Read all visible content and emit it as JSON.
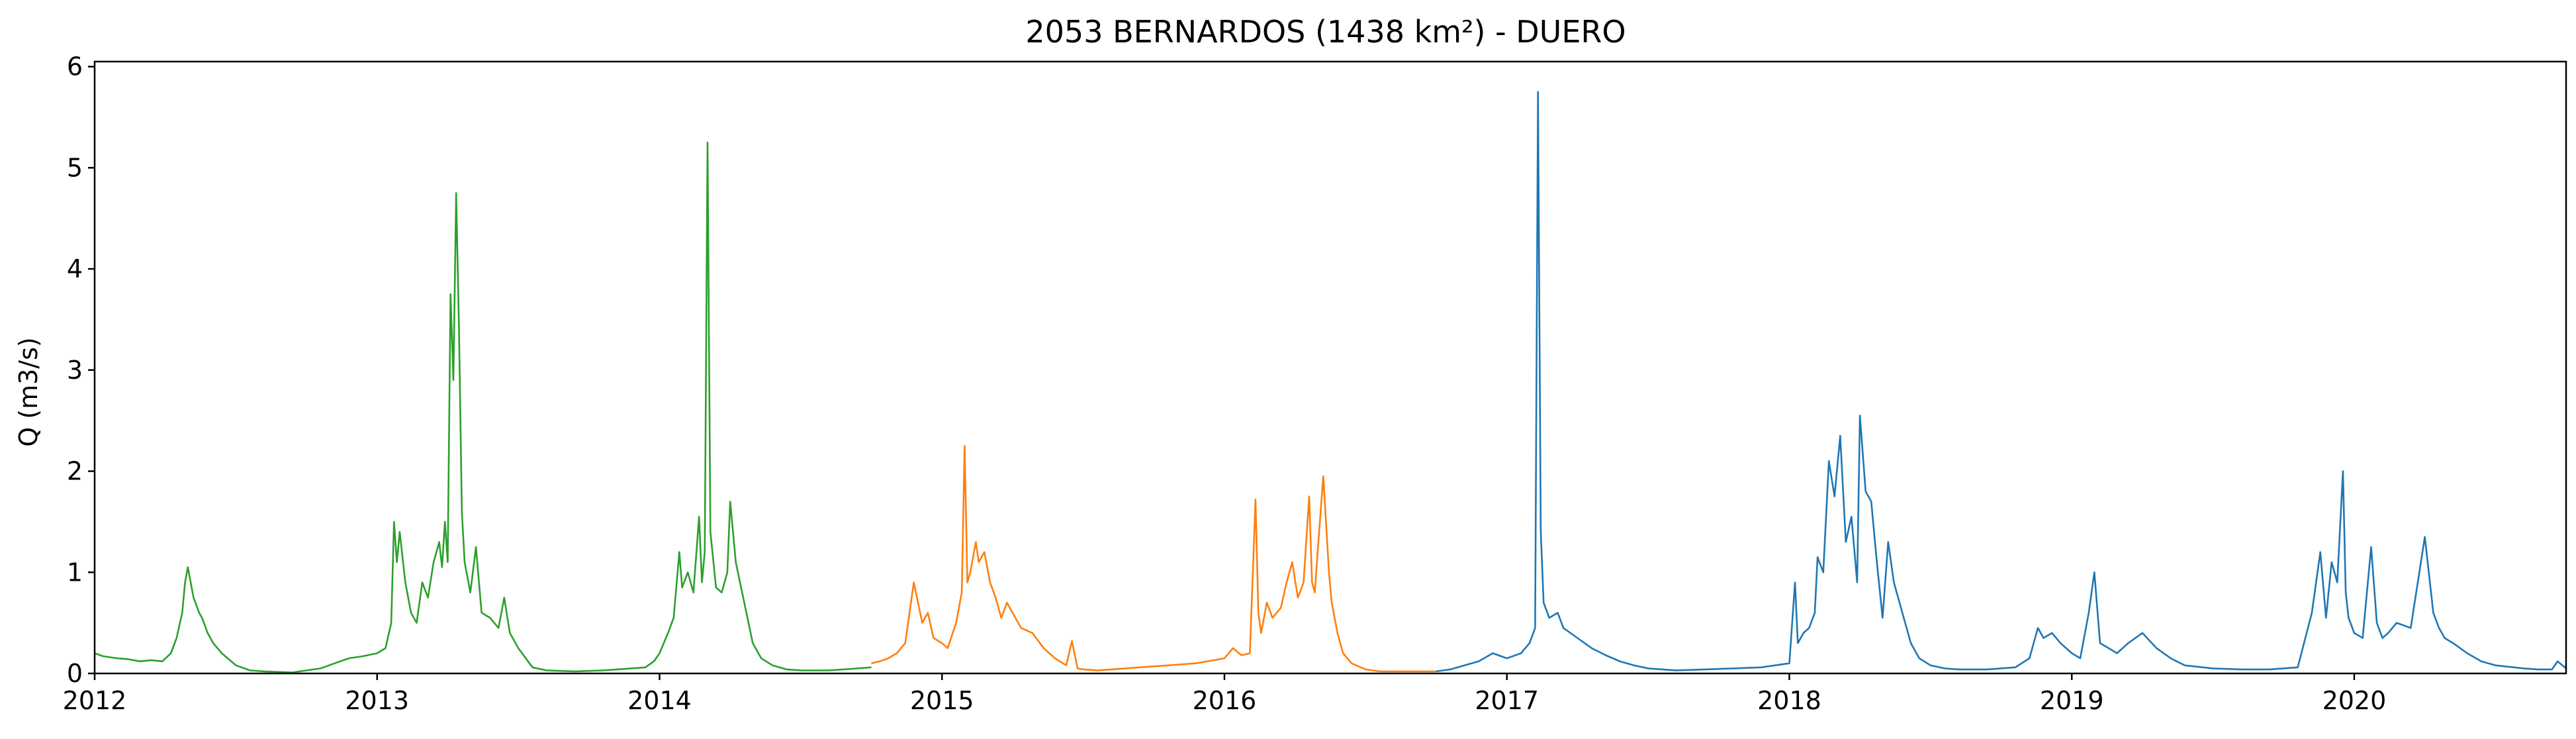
{
  "chart_data": {
    "type": "line",
    "title": "2053 BERNARDOS (1438 km²) - DUERO",
    "xlabel": "",
    "ylabel": "Q (m3/s)",
    "xlim": [
      2012.0,
      2020.75
    ],
    "ylim": [
      0,
      6.05
    ],
    "xticks": [
      "2012",
      "2013",
      "2014",
      "2015",
      "2016",
      "2017",
      "2018",
      "2019",
      "2020"
    ],
    "yticks": [
      "0",
      "1",
      "2",
      "3",
      "4",
      "5",
      "6"
    ],
    "grid": false,
    "legend": "none",
    "series": [
      {
        "color": "#2ca02c",
        "x": [
          2012.0,
          2012.03,
          2012.08,
          2012.12,
          2012.16,
          2012.2,
          2012.24,
          2012.27,
          2012.29,
          2012.31,
          2012.32,
          2012.33,
          2012.35,
          2012.37,
          2012.38,
          2012.4,
          2012.42,
          2012.45,
          2012.5,
          2012.55,
          2012.6,
          2012.7,
          2012.8,
          2012.85,
          2012.9,
          2012.95,
          2013.0,
          2013.03,
          2013.05,
          2013.06,
          2013.07,
          2013.08,
          2013.1,
          2013.12,
          2013.14,
          2013.16,
          2013.18,
          2013.2,
          2013.22,
          2013.23,
          2013.24,
          2013.25,
          2013.26,
          2013.27,
          2013.28,
          2013.29,
          2013.3,
          2013.31,
          2013.33,
          2013.35,
          2013.37,
          2013.4,
          2013.43,
          2013.45,
          2013.47,
          2013.5,
          2013.55,
          2013.6,
          2013.7,
          2013.8,
          2013.9,
          2013.95,
          2013.98,
          2014.0,
          2014.03,
          2014.05,
          2014.07,
          2014.08,
          2014.1,
          2014.12,
          2014.14,
          2014.15,
          2014.16,
          2014.17,
          2014.18,
          2014.2,
          2014.22,
          2014.24,
          2014.25,
          2014.27,
          2014.3,
          2014.33,
          2014.36,
          2014.4,
          2014.45,
          2014.5,
          2014.6,
          2014.7,
          2014.75
        ],
        "y": [
          0.2,
          0.17,
          0.15,
          0.14,
          0.12,
          0.13,
          0.12,
          0.2,
          0.35,
          0.6,
          0.9,
          1.05,
          0.75,
          0.6,
          0.55,
          0.4,
          0.3,
          0.2,
          0.08,
          0.03,
          0.02,
          0.01,
          0.05,
          0.1,
          0.15,
          0.17,
          0.2,
          0.25,
          0.5,
          1.5,
          1.1,
          1.4,
          0.9,
          0.6,
          0.5,
          0.9,
          0.75,
          1.1,
          1.3,
          1.05,
          1.5,
          1.1,
          3.75,
          2.9,
          4.75,
          3.4,
          1.6,
          1.1,
          0.8,
          1.25,
          0.6,
          0.55,
          0.45,
          0.75,
          0.4,
          0.25,
          0.06,
          0.03,
          0.02,
          0.03,
          0.05,
          0.06,
          0.12,
          0.2,
          0.4,
          0.55,
          1.2,
          0.85,
          1.0,
          0.8,
          1.55,
          0.9,
          1.2,
          5.25,
          1.4,
          0.85,
          0.8,
          1.0,
          1.7,
          1.1,
          0.7,
          0.3,
          0.15,
          0.08,
          0.04,
          0.03,
          0.03,
          0.05,
          0.06
        ]
      },
      {
        "color": "#ff7f0e",
        "x": [
          2014.75,
          2014.78,
          2014.81,
          2014.84,
          2014.87,
          2014.9,
          2014.93,
          2014.95,
          2014.97,
          2015.0,
          2015.02,
          2015.05,
          2015.07,
          2015.08,
          2015.09,
          2015.1,
          2015.12,
          2015.13,
          2015.15,
          2015.17,
          2015.19,
          2015.21,
          2015.23,
          2015.25,
          2015.28,
          2015.32,
          2015.36,
          2015.4,
          2015.44,
          2015.46,
          2015.48,
          2015.5,
          2015.55,
          2015.6,
          2015.7,
          2015.8,
          2015.9,
          2016.0,
          2016.03,
          2016.06,
          2016.09,
          2016.11,
          2016.12,
          2016.13,
          2016.15,
          2016.17,
          2016.2,
          2016.22,
          2016.24,
          2016.26,
          2016.28,
          2016.3,
          2016.31,
          2016.32,
          2016.33,
          2016.35,
          2016.37,
          2016.38,
          2016.4,
          2016.42,
          2016.45,
          2016.5,
          2016.55,
          2016.6,
          2016.7,
          2016.75
        ],
        "y": [
          0.1,
          0.12,
          0.15,
          0.2,
          0.3,
          0.9,
          0.5,
          0.6,
          0.35,
          0.3,
          0.25,
          0.5,
          0.8,
          2.25,
          0.9,
          1.0,
          1.3,
          1.1,
          1.2,
          0.9,
          0.75,
          0.55,
          0.7,
          0.6,
          0.45,
          0.4,
          0.25,
          0.15,
          0.08,
          0.32,
          0.05,
          0.04,
          0.03,
          0.04,
          0.06,
          0.08,
          0.1,
          0.15,
          0.25,
          0.18,
          0.2,
          1.72,
          0.6,
          0.4,
          0.7,
          0.55,
          0.65,
          0.9,
          1.1,
          0.75,
          0.9,
          1.75,
          0.9,
          0.8,
          1.2,
          1.95,
          1.0,
          0.7,
          0.4,
          0.2,
          0.1,
          0.04,
          0.02,
          0.02,
          0.02,
          0.02
        ]
      },
      {
        "color": "#1f77b4",
        "x": [
          2016.75,
          2016.8,
          2016.85,
          2016.9,
          2016.95,
          2017.0,
          2017.05,
          2017.08,
          2017.1,
          2017.11,
          2017.12,
          2017.13,
          2017.15,
          2017.18,
          2017.2,
          2017.25,
          2017.3,
          2017.35,
          2017.4,
          2017.45,
          2017.5,
          2017.55,
          2017.6,
          2017.7,
          2017.8,
          2017.9,
          2018.0,
          2018.02,
          2018.03,
          2018.05,
          2018.07,
          2018.09,
          2018.1,
          2018.12,
          2018.14,
          2018.16,
          2018.18,
          2018.2,
          2018.22,
          2018.24,
          2018.25,
          2018.27,
          2018.29,
          2018.31,
          2018.33,
          2018.35,
          2018.37,
          2018.4,
          2018.43,
          2018.46,
          2018.5,
          2018.55,
          2018.6,
          2018.7,
          2018.8,
          2018.85,
          2018.88,
          2018.9,
          2018.93,
          2018.96,
          2019.0,
          2019.03,
          2019.06,
          2019.08,
          2019.1,
          2019.13,
          2019.16,
          2019.2,
          2019.25,
          2019.3,
          2019.35,
          2019.4,
          2019.5,
          2019.6,
          2019.7,
          2019.8,
          2019.85,
          2019.88,
          2019.9,
          2019.92,
          2019.94,
          2019.96,
          2019.97,
          2019.98,
          2020.0,
          2020.03,
          2020.06,
          2020.08,
          2020.1,
          2020.12,
          2020.15,
          2020.2,
          2020.25,
          2020.28,
          2020.3,
          2020.32,
          2020.35,
          2020.4,
          2020.45,
          2020.5,
          2020.6,
          2020.65,
          2020.7,
          2020.72,
          2020.75
        ],
        "y": [
          0.02,
          0.04,
          0.08,
          0.12,
          0.2,
          0.15,
          0.2,
          0.3,
          0.45,
          5.75,
          1.4,
          0.7,
          0.55,
          0.6,
          0.45,
          0.35,
          0.25,
          0.18,
          0.12,
          0.08,
          0.05,
          0.04,
          0.03,
          0.04,
          0.05,
          0.06,
          0.1,
          0.9,
          0.3,
          0.4,
          0.45,
          0.6,
          1.15,
          1.0,
          2.1,
          1.75,
          2.35,
          1.3,
          1.55,
          0.9,
          2.55,
          1.8,
          1.7,
          1.1,
          0.55,
          1.3,
          0.9,
          0.6,
          0.3,
          0.15,
          0.08,
          0.05,
          0.04,
          0.04,
          0.06,
          0.15,
          0.45,
          0.35,
          0.4,
          0.3,
          0.2,
          0.15,
          0.6,
          1.0,
          0.3,
          0.25,
          0.2,
          0.3,
          0.4,
          0.25,
          0.15,
          0.08,
          0.05,
          0.04,
          0.04,
          0.06,
          0.6,
          1.2,
          0.55,
          1.1,
          0.9,
          2.0,
          0.8,
          0.55,
          0.4,
          0.35,
          1.25,
          0.5,
          0.35,
          0.4,
          0.5,
          0.45,
          1.35,
          0.6,
          0.45,
          0.35,
          0.3,
          0.2,
          0.12,
          0.08,
          0.05,
          0.04,
          0.04,
          0.12,
          0.05
        ]
      }
    ]
  }
}
